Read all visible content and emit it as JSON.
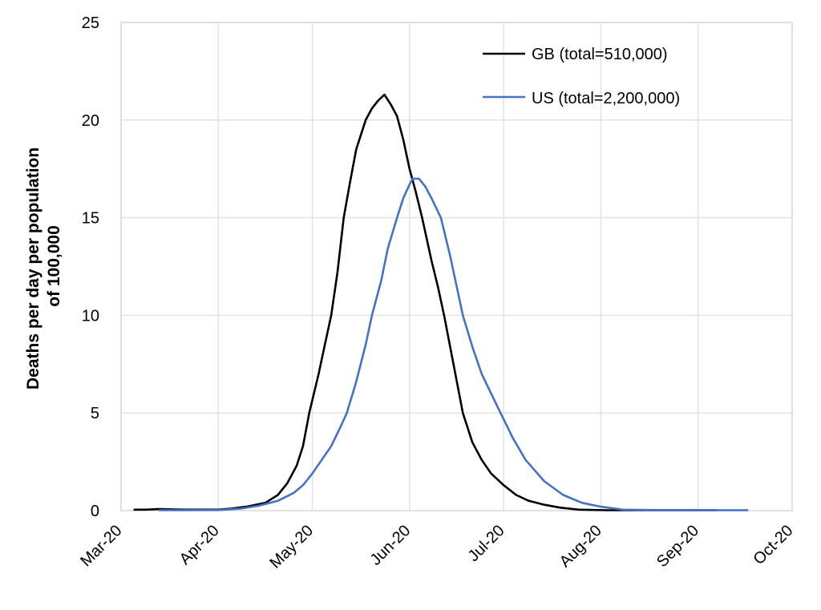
{
  "chart_data": {
    "type": "line",
    "title": "",
    "xlabel": "",
    "ylabel": "Deaths per day per population of 100,000",
    "ylabel_lines": [
      "Deaths per day per population",
      "of 100,000"
    ],
    "ylim": [
      0,
      25
    ],
    "yticks": [
      0,
      5,
      10,
      15,
      20,
      25
    ],
    "x_unit": "days since 1 Mar 2020",
    "xlim": [
      0,
      214
    ],
    "xticks": [
      {
        "label": "Mar-20",
        "day": 0
      },
      {
        "label": "Apr-20",
        "day": 31
      },
      {
        "label": "May-20",
        "day": 61
      },
      {
        "label": "Jun-20",
        "day": 92
      },
      {
        "label": "Jul-20",
        "day": 122
      },
      {
        "label": "Aug-20",
        "day": 153
      },
      {
        "label": "Sep-20",
        "day": 184
      },
      {
        "label": "Oct-20",
        "day": 214
      }
    ],
    "grid": true,
    "legend_position": "upper right",
    "series": [
      {
        "name": "GB (total=510,000)",
        "color": "#000000",
        "x": [
          4,
          8,
          12,
          20,
          31,
          35,
          40,
          46,
          50,
          53,
          56,
          58,
          60,
          63,
          65,
          67,
          69,
          71,
          73,
          75,
          78,
          80,
          82,
          84,
          86,
          88,
          90,
          92,
          94,
          96,
          99,
          101,
          103,
          106,
          109,
          112,
          115,
          118,
          122,
          126,
          130,
          135,
          140,
          146,
          155,
          170,
          190
        ],
        "y": [
          0.05,
          0.05,
          0.08,
          0.05,
          0.05,
          0.1,
          0.2,
          0.4,
          0.8,
          1.4,
          2.3,
          3.3,
          5.0,
          7.0,
          8.5,
          10.0,
          12.2,
          15.0,
          16.8,
          18.5,
          20.0,
          20.6,
          21.0,
          21.3,
          20.8,
          20.2,
          19.0,
          17.5,
          16.3,
          15.0,
          12.8,
          11.5,
          10.0,
          7.5,
          5.0,
          3.5,
          2.6,
          1.9,
          1.3,
          0.8,
          0.5,
          0.3,
          0.15,
          0.05,
          0.02,
          0.02,
          0.02
        ]
      },
      {
        "name": "US (total=2,200,000)",
        "color": "#4472C4",
        "x": [
          12,
          20,
          31,
          38,
          44,
          50,
          55,
          58,
          61,
          64,
          67,
          70,
          72,
          75,
          78,
          80,
          83,
          85,
          88,
          90,
          92,
          93,
          95,
          97,
          99,
          102,
          105,
          107,
          109,
          112,
          115,
          118,
          121,
          125,
          129,
          135,
          141,
          147,
          153,
          160,
          170,
          185,
          200
        ],
        "y": [
          0.02,
          0.02,
          0.03,
          0.1,
          0.25,
          0.5,
          0.9,
          1.3,
          1.9,
          2.6,
          3.3,
          4.3,
          5.0,
          6.6,
          8.5,
          10.0,
          11.8,
          13.4,
          15.0,
          16.0,
          16.7,
          17.0,
          17.0,
          16.6,
          16.0,
          15.0,
          13.0,
          11.5,
          10.0,
          8.4,
          7.0,
          6.0,
          5.0,
          3.7,
          2.6,
          1.5,
          0.8,
          0.4,
          0.2,
          0.05,
          0.03,
          0.02,
          0.02
        ]
      }
    ]
  }
}
